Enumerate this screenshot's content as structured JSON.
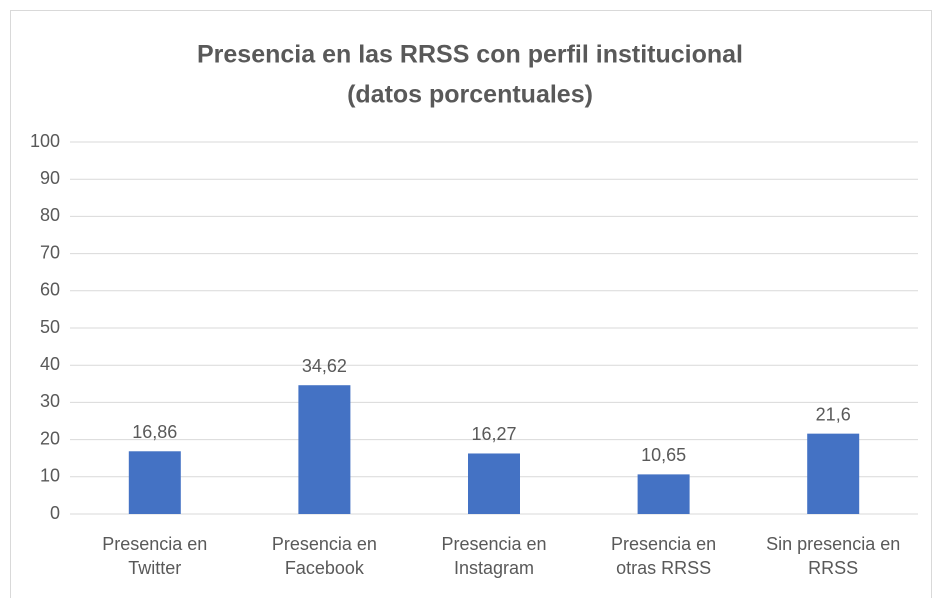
{
  "chart_data": {
    "type": "bar",
    "title": "Presencia en las RRSS con perfil institucional",
    "subtitle": "(datos porcentuales)",
    "categories": [
      "Presencia en Twitter",
      "Presencia en Facebook",
      "Presencia en Instagram",
      "Presencia en otras RRSS",
      "Sin presencia en RRSS"
    ],
    "values": [
      16.86,
      34.62,
      16.27,
      10.65,
      21.6
    ],
    "value_labels": [
      "16,86",
      "34,62",
      "16,27",
      "10,65",
      "21,6"
    ],
    "color": "#4472c4",
    "ylim": [
      0,
      100
    ],
    "yticks": [
      0,
      10,
      20,
      30,
      40,
      50,
      60,
      70,
      80,
      90,
      100
    ],
    "grid": true
  }
}
